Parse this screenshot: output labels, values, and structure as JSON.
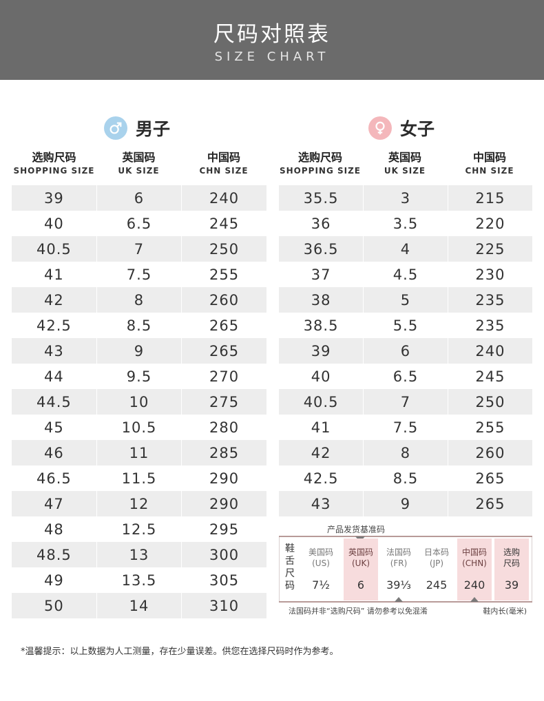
{
  "header": {
    "title": "尺码对照表",
    "subtitle": "SIZE CHART"
  },
  "colors": {
    "banner": "#6b6b6b",
    "male_accent": "#a9d2ec",
    "female_accent": "#f4b7bb",
    "row_stripe": "#ededed",
    "highlight": "#f7dcdd"
  },
  "men": {
    "gender_label": "男子",
    "icon": "male-symbol-icon",
    "columns": [
      {
        "zh": "选购尺码",
        "en": "SHOPPING SIZE"
      },
      {
        "zh": "英国码",
        "en": "UK SIZE"
      },
      {
        "zh": "中国码",
        "en": "CHN SIZE"
      }
    ],
    "rows": [
      [
        "39",
        "6",
        "240"
      ],
      [
        "40",
        "6.5",
        "245"
      ],
      [
        "40.5",
        "7",
        "250"
      ],
      [
        "41",
        "7.5",
        "255"
      ],
      [
        "42",
        "8",
        "260"
      ],
      [
        "42.5",
        "8.5",
        "265"
      ],
      [
        "43",
        "9",
        "265"
      ],
      [
        "44",
        "9.5",
        "270"
      ],
      [
        "44.5",
        "10",
        "275"
      ],
      [
        "45",
        "10.5",
        "280"
      ],
      [
        "46",
        "11",
        "285"
      ],
      [
        "46.5",
        "11.5",
        "290"
      ],
      [
        "47",
        "12",
        "290"
      ],
      [
        "48",
        "12.5",
        "295"
      ],
      [
        "48.5",
        "13",
        "300"
      ],
      [
        "49",
        "13.5",
        "305"
      ],
      [
        "50",
        "14",
        "310"
      ]
    ]
  },
  "women": {
    "gender_label": "女子",
    "icon": "female-symbol-icon",
    "columns": [
      {
        "zh": "选购尺码",
        "en": "SHOPPING SIZE"
      },
      {
        "zh": "英国码",
        "en": "UK SIZE"
      },
      {
        "zh": "中国码",
        "en": "CHN SIZE"
      }
    ],
    "rows": [
      [
        "35.5",
        "3",
        "215"
      ],
      [
        "36",
        "3.5",
        "220"
      ],
      [
        "36.5",
        "4",
        "225"
      ],
      [
        "37",
        "4.5",
        "230"
      ],
      [
        "38",
        "5",
        "235"
      ],
      [
        "38.5",
        "5.5",
        "235"
      ],
      [
        "39",
        "6",
        "240"
      ],
      [
        "40",
        "6.5",
        "245"
      ],
      [
        "40.5",
        "7",
        "250"
      ],
      [
        "41",
        "7.5",
        "255"
      ],
      [
        "42",
        "8",
        "260"
      ],
      [
        "42.5",
        "8.5",
        "265"
      ],
      [
        "43",
        "9",
        "265"
      ]
    ]
  },
  "reference": {
    "title": "产品发货基准码",
    "tongue_label": "鞋舌尺码",
    "columns": [
      {
        "h1": "美国码",
        "h2": "(US)",
        "value": "7½",
        "highlight": false
      },
      {
        "h1": "英国码",
        "h2": "(UK)",
        "value": "6",
        "highlight": true
      },
      {
        "h1": "法国码",
        "h2": "(FR)",
        "value": "39⅓",
        "highlight": false
      },
      {
        "h1": "日本码",
        "h2": "(JP)",
        "value": "245",
        "highlight": false
      },
      {
        "h1": "中国码",
        "h2": "(CHN)",
        "value": "240",
        "highlight": true
      },
      {
        "h1": "选购",
        "h2": "尺码",
        "value": "39",
        "highlight": true
      }
    ],
    "note_left": "法国码并非“选购尺码” 请勿参考以免混淆",
    "note_right": "鞋内长(毫米)"
  },
  "footer": {
    "tip": "*温馨提示：以上数据为人工测量，存在少量误差。供您在选择尺码时作为参考。"
  }
}
